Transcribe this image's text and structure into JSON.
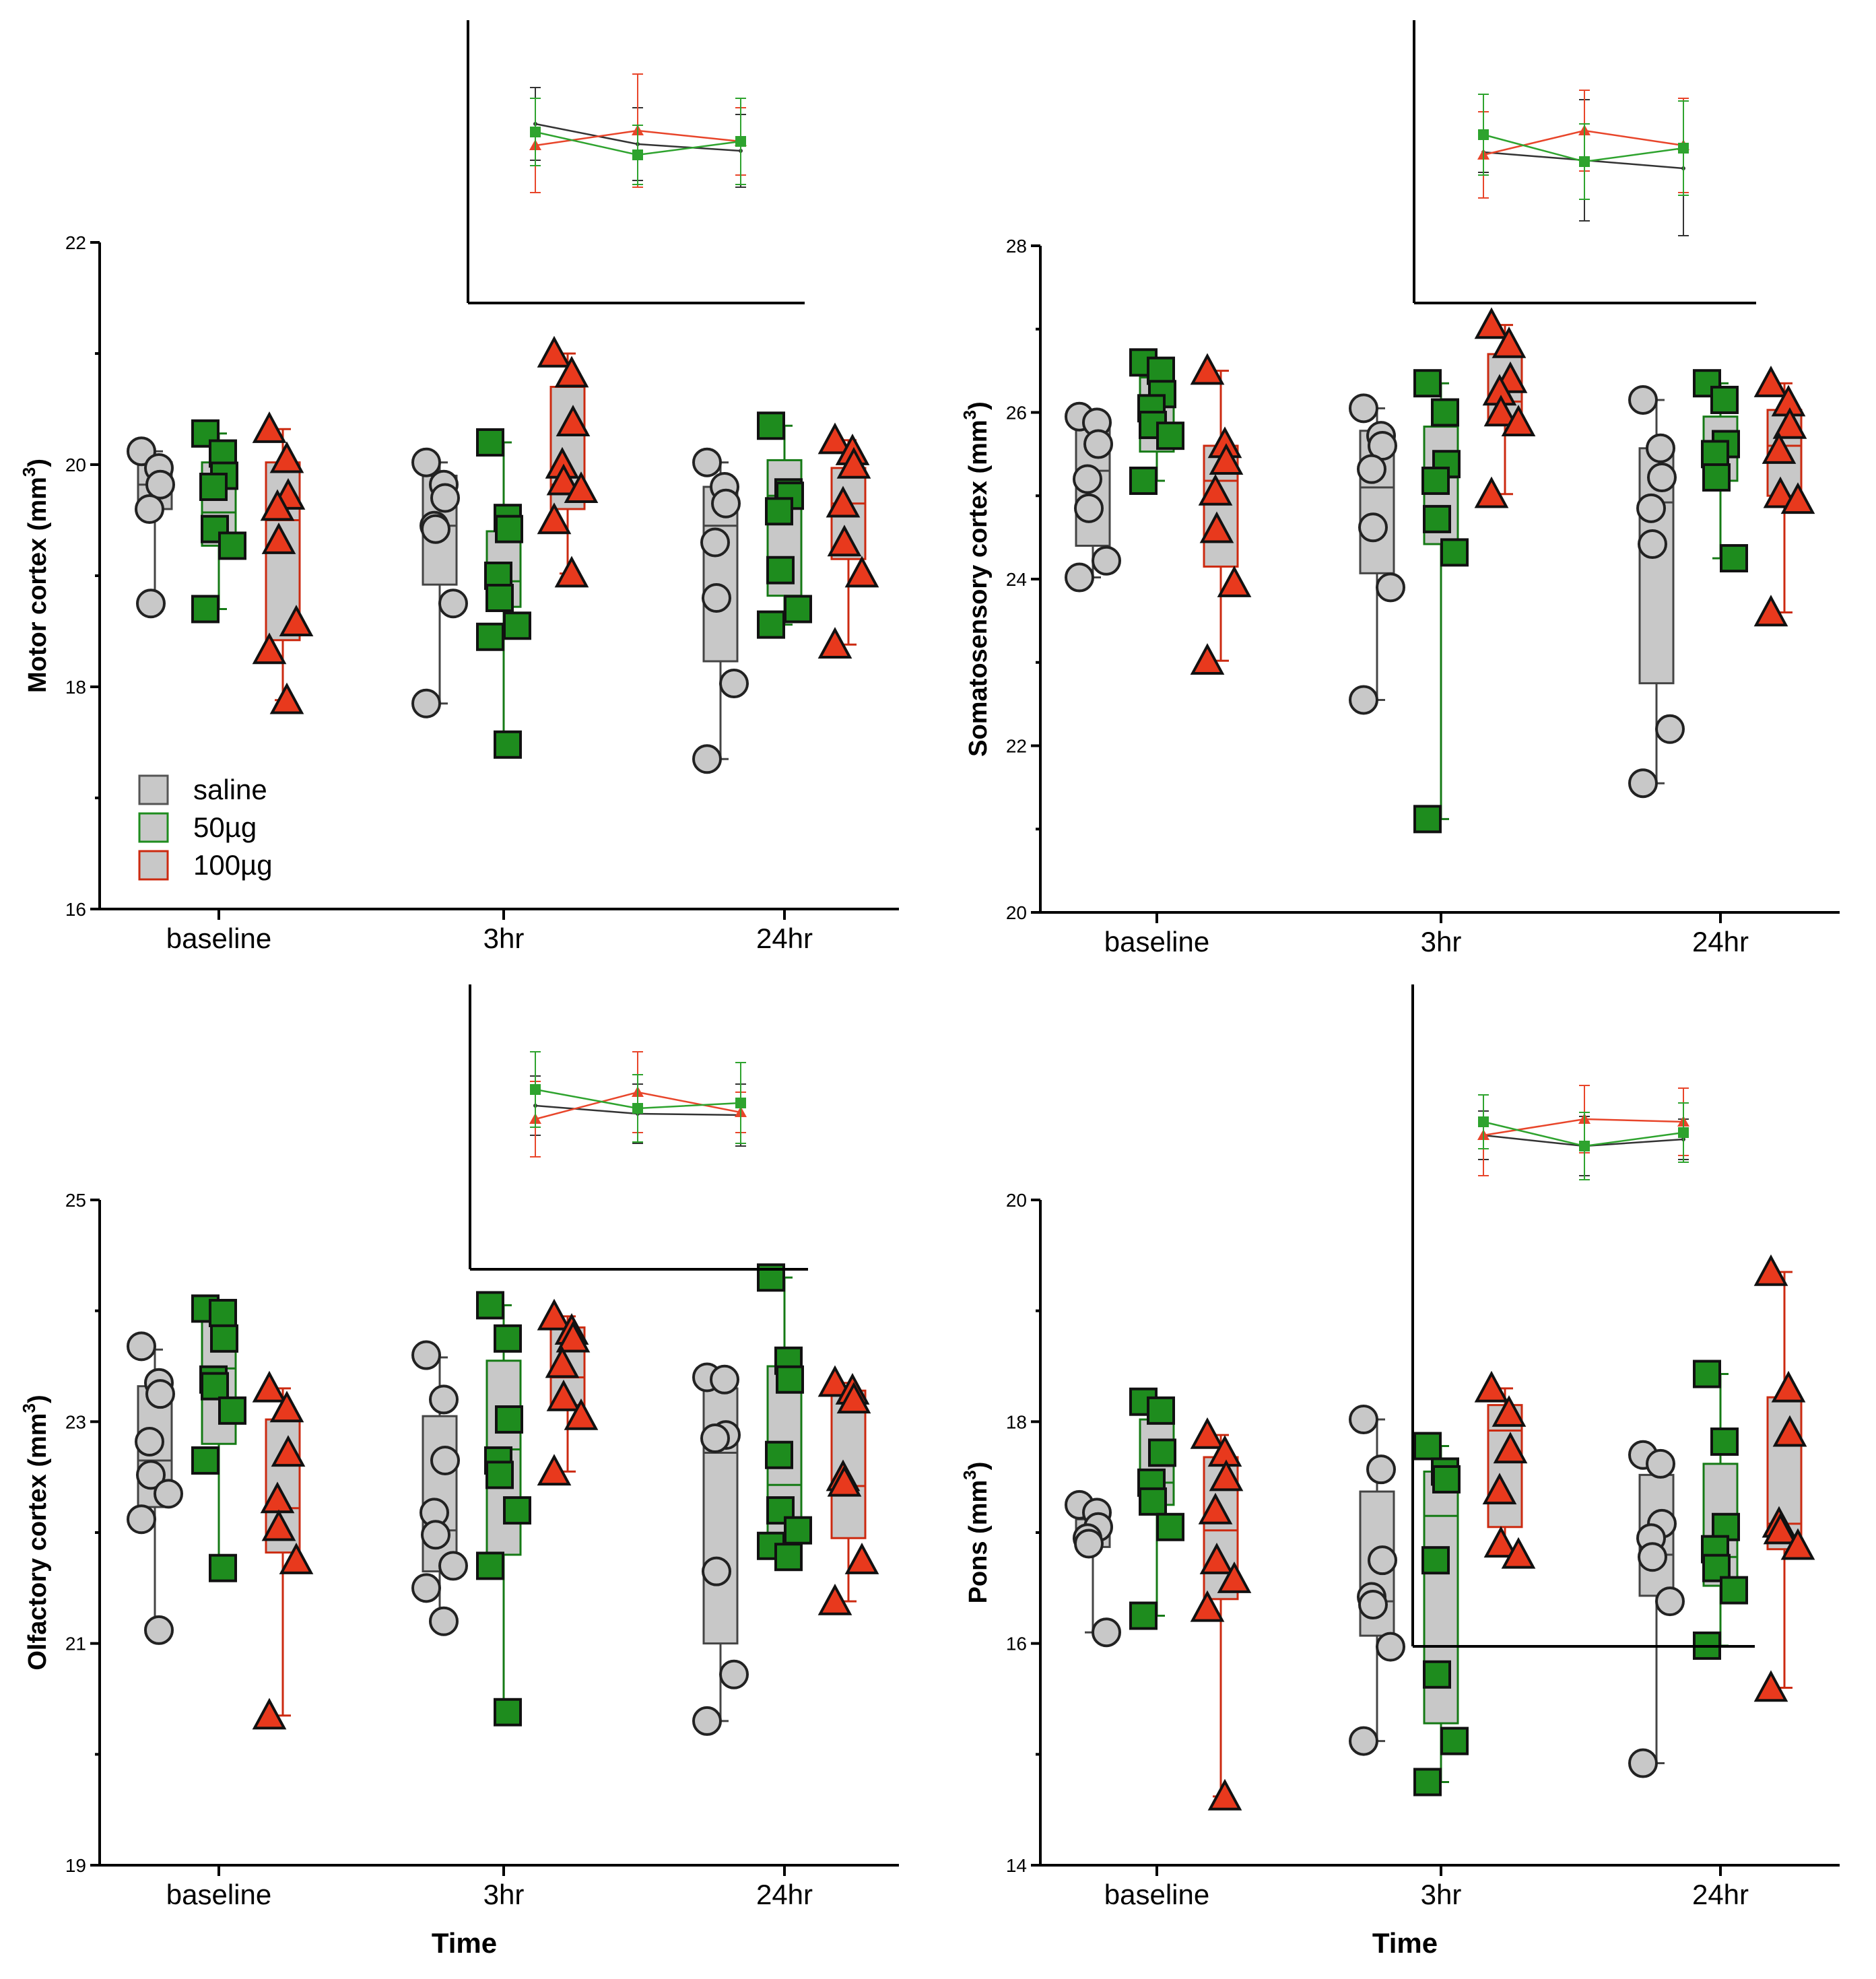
{
  "colors": {
    "saline_fill": "#c8c8c8",
    "saline_edge": "#333333",
    "d50_fill": "#1e8c1e",
    "d50_edge": "#157a15",
    "d100_fill": "#e8391d",
    "d100_edge": "#cc2a10",
    "box_fill": "#c8c8c8",
    "inset_saline": "#333333",
    "inset_50": "#2ea32e",
    "inset_100": "#e8452a"
  },
  "legend": {
    "items": [
      {
        "label": "saline",
        "key": "saline"
      },
      {
        "label": "50µg",
        "key": "d50"
      },
      {
        "label": "100µg",
        "key": "d100"
      }
    ]
  },
  "chart_data": [
    {
      "type": "box",
      "ylabel_main": "Motor cortex (mm",
      "ylabel_sup": "3",
      "ylabel_close": ")",
      "xlabel": "",
      "ylim": [
        16,
        22
      ],
      "yticks": [
        "16",
        "18",
        "20",
        "22"
      ],
      "categories": [
        "baseline",
        "3hr",
        "24hr"
      ],
      "series": [
        {
          "name": "saline",
          "groups": [
            {
              "box": [
                18.75,
                19.6,
                19.82,
                20.02,
                20.12
              ],
              "points": [
                20.12,
                19.97,
                19.82,
                19.6,
                18.75
              ]
            },
            {
              "box": [
                17.85,
                18.92,
                19.45,
                19.9,
                20.02
              ],
              "points": [
                20.02,
                19.82,
                19.7,
                19.45,
                19.42,
                18.75,
                17.85
              ]
            },
            {
              "box": [
                17.35,
                18.23,
                19.45,
                19.8,
                20.02
              ],
              "points": [
                20.02,
                19.8,
                19.65,
                19.3,
                18.8,
                18.03,
                17.35
              ]
            }
          ]
        },
        {
          "name": "50µg",
          "groups": [
            {
              "box": [
                18.7,
                19.27,
                19.57,
                20.02,
                20.28
              ],
              "points": [
                20.28,
                20.1,
                19.9,
                19.8,
                19.42,
                19.27,
                18.7
              ]
            },
            {
              "box": [
                17.48,
                18.72,
                18.95,
                19.4,
                20.2
              ],
              "points": [
                20.2,
                19.52,
                19.42,
                19.0,
                18.8,
                18.55,
                18.45,
                17.48
              ]
            },
            {
              "box": [
                18.56,
                18.82,
                19.72,
                20.04,
                20.35
              ],
              "points": [
                20.35,
                19.75,
                19.72,
                19.58,
                19.05,
                18.7,
                18.56
              ]
            }
          ]
        },
        {
          "name": "100µg",
          "groups": [
            {
              "box": [
                17.88,
                18.42,
                19.5,
                20.02,
                20.32
              ],
              "points": [
                20.32,
                20.05,
                19.72,
                19.62,
                19.32,
                18.58,
                18.33,
                17.88
              ]
            },
            {
              "box": [
                19.02,
                19.6,
                19.82,
                20.7,
                21.0
              ],
              "points": [
                21.0,
                20.82,
                20.38,
                20.0,
                19.85,
                19.78,
                19.5,
                19.02
              ]
            },
            {
              "box": [
                18.38,
                19.15,
                19.65,
                19.97,
                20.22
              ],
              "points": [
                20.22,
                20.12,
                20.0,
                19.65,
                19.3,
                19.02,
                18.38
              ]
            }
          ]
        }
      ],
      "inset": {
        "series": [
          {
            "name": "saline",
            "values": [
              27,
              42,
              47
            ],
            "err": [
              27,
              27,
              27
            ]
          },
          {
            "name": "50µg",
            "values": [
              33,
              50,
              40
            ],
            "err": [
              25,
              22,
              32
            ]
          },
          {
            "name": "100µg",
            "values": [
              43,
              32,
              40
            ],
            "err": [
              35,
              42,
              25
            ]
          }
        ]
      }
    },
    {
      "type": "box",
      "ylabel_main": "Somatosensory cortex (mm",
      "ylabel_sup": "3",
      "ylabel_close": ")",
      "xlabel": "",
      "ylim": [
        20,
        28
      ],
      "yticks": [
        "20",
        "22",
        "24",
        "26",
        "28"
      ],
      "categories": [
        "baseline",
        "3hr",
        "24hr"
      ],
      "series": [
        {
          "name": "saline",
          "groups": [
            {
              "box": [
                24.02,
                24.4,
                25.3,
                25.83,
                25.95
              ],
              "points": [
                25.95,
                25.88,
                25.62,
                25.2,
                24.85,
                24.22,
                24.02
              ]
            },
            {
              "box": [
                22.55,
                24.07,
                25.1,
                25.78,
                26.05
              ],
              "points": [
                26.05,
                25.72,
                25.6,
                25.32,
                24.62,
                23.9,
                22.55
              ]
            },
            {
              "box": [
                21.55,
                22.75,
                24.92,
                25.57,
                26.15
              ],
              "points": [
                26.15,
                25.57,
                25.22,
                24.85,
                24.42,
                22.2,
                21.55
              ]
            }
          ]
        },
        {
          "name": "50µg",
          "groups": [
            {
              "box": [
                25.18,
                25.53,
                25.8,
                26.42,
                26.6
              ],
              "points": [
                26.6,
                26.5,
                26.22,
                26.05,
                25.85,
                25.72,
                25.18
              ]
            },
            {
              "box": [
                21.12,
                24.42,
                25.22,
                25.83,
                26.35
              ],
              "points": [
                26.35,
                26.0,
                25.38,
                25.18,
                24.72,
                24.32,
                21.12
              ]
            },
            {
              "box": [
                24.25,
                25.18,
                25.57,
                25.95,
                26.35
              ],
              "points": [
                26.35,
                26.15,
                25.62,
                25.5,
                25.22,
                24.25
              ]
            }
          ]
        },
        {
          "name": "100µg",
          "groups": [
            {
              "box": [
                23.02,
                24.15,
                25.18,
                25.6,
                26.5
              ],
              "points": [
                26.5,
                25.62,
                25.42,
                25.05,
                24.6,
                23.95,
                23.02
              ]
            },
            {
              "box": [
                25.02,
                25.9,
                26.13,
                26.7,
                27.05
              ],
              "points": [
                27.05,
                26.82,
                26.4,
                26.25,
                26.0,
                25.88,
                25.02
              ]
            },
            {
              "box": [
                23.6,
                25.0,
                25.6,
                26.03,
                26.35
              ],
              "points": [
                26.35,
                26.12,
                25.85,
                25.55,
                25.02,
                24.95,
                23.6
              ]
            }
          ]
        }
      ],
      "inset": {
        "series": [
          {
            "name": "saline",
            "values": [
              48,
              54,
              60
            ],
            "err": [
              15,
              45,
              50
            ]
          },
          {
            "name": "50µg",
            "values": [
              35,
              55,
              45
            ],
            "err": [
              30,
              28,
              35
            ]
          },
          {
            "name": "100µg",
            "values": [
              50,
              32,
              43
            ],
            "err": [
              32,
              30,
              35
            ]
          }
        ]
      }
    },
    {
      "type": "box",
      "ylabel_main": "Olfactory cortex (mm",
      "ylabel_sup": "3",
      "ylabel_close": ")",
      "xlabel": "Time",
      "ylim": [
        19,
        25
      ],
      "yticks": [
        "19",
        "21",
        "23",
        "25"
      ],
      "categories": [
        "baseline",
        "3hr",
        "24hr"
      ],
      "series": [
        {
          "name": "saline",
          "groups": [
            {
              "box": [
                21.12,
                22.23,
                22.65,
                23.32,
                23.65
              ],
              "points": [
                23.68,
                23.35,
                23.25,
                22.82,
                22.52,
                22.35,
                22.12,
                21.12
              ]
            },
            {
              "box": [
                21.2,
                21.65,
                22.02,
                23.05,
                23.58
              ],
              "points": [
                23.6,
                23.2,
                22.65,
                22.18,
                21.98,
                21.7,
                21.5,
                21.2
              ]
            },
            {
              "box": [
                20.3,
                21.0,
                22.72,
                23.3,
                23.4
              ],
              "points": [
                23.4,
                23.38,
                22.88,
                22.85,
                21.65,
                20.72,
                20.3
              ]
            }
          ]
        },
        {
          "name": "50µg",
          "groups": [
            {
              "box": [
                21.68,
                22.8,
                23.48,
                23.98,
                24.02
              ],
              "points": [
                24.02,
                23.98,
                23.75,
                23.38,
                23.32,
                23.1,
                22.65,
                21.68
              ]
            },
            {
              "box": [
                20.38,
                21.8,
                22.75,
                23.55,
                24.05
              ],
              "points": [
                24.05,
                23.75,
                23.02,
                22.65,
                22.52,
                22.2,
                21.7,
                20.38
              ]
            },
            {
              "box": [
                21.78,
                21.95,
                22.43,
                23.5,
                24.3
              ],
              "points": [
                24.3,
                23.55,
                23.38,
                22.7,
                22.2,
                22.02,
                21.88,
                21.78
              ]
            }
          ]
        },
        {
          "name": "100µg",
          "groups": [
            {
              "box": [
                20.35,
                21.82,
                22.22,
                23.02,
                23.3
              ],
              "points": [
                23.3,
                23.12,
                22.72,
                22.3,
                22.05,
                21.75,
                20.35
              ]
            },
            {
              "box": [
                22.55,
                23.15,
                23.4,
                23.85,
                23.95
              ],
              "points": [
                23.95,
                23.82,
                23.75,
                23.52,
                23.22,
                23.05,
                22.55
              ]
            },
            {
              "box": [
                21.38,
                21.95,
                22.42,
                23.28,
                23.35
              ],
              "points": [
                23.35,
                23.28,
                23.2,
                22.5,
                22.45,
                21.75,
                21.38
              ]
            }
          ]
        }
      ],
      "inset": {
        "series": [
          {
            "name": "saline",
            "values": [
              40,
              46,
              47
            ],
            "err": [
              22,
              22,
              23
            ]
          },
          {
            "name": "50µg",
            "values": [
              28,
              42,
              38
            ],
            "err": [
              28,
              25,
              30
            ]
          },
          {
            "name": "100µg",
            "values": [
              50,
              30,
              45
            ],
            "err": [
              28,
              30,
              15
            ]
          }
        ]
      }
    },
    {
      "type": "box",
      "ylabel_main": "Pons (mm",
      "ylabel_sup": "3",
      "ylabel_close": ")",
      "xlabel": "Time",
      "ylim": [
        14,
        20
      ],
      "yticks": [
        "14",
        "16",
        "18",
        "20"
      ],
      "categories": [
        "baseline",
        "3hr",
        "24hr"
      ],
      "series": [
        {
          "name": "saline",
          "groups": [
            {
              "box": [
                16.1,
                16.87,
                16.98,
                17.12,
                17.28
              ],
              "points": [
                17.25,
                17.18,
                17.05,
                16.95,
                16.9,
                16.1
              ]
            },
            {
              "box": [
                15.12,
                16.07,
                16.38,
                17.37,
                18.02
              ],
              "points": [
                18.02,
                17.57,
                16.75,
                16.42,
                16.35,
                15.97,
                15.12
              ]
            },
            {
              "box": [
                14.92,
                16.43,
                16.8,
                17.52,
                17.7
              ],
              "points": [
                17.7,
                17.62,
                17.08,
                16.95,
                16.78,
                16.38,
                14.92
              ]
            }
          ]
        },
        {
          "name": "50µg",
          "groups": [
            {
              "box": [
                16.25,
                17.25,
                17.45,
                18.02,
                18.18
              ],
              "points": [
                18.18,
                18.1,
                17.72,
                17.45,
                17.28,
                17.05,
                16.25
              ]
            },
            {
              "box": [
                14.75,
                15.28,
                17.15,
                17.55,
                17.78
              ],
              "points": [
                17.78,
                17.55,
                17.48,
                16.75,
                15.72,
                15.12,
                14.75
              ]
            },
            {
              "box": [
                15.98,
                16.52,
                16.78,
                17.62,
                18.43
              ],
              "points": [
                18.43,
                17.82,
                17.05,
                16.85,
                16.68,
                16.48,
                15.98
              ]
            }
          ]
        },
        {
          "name": "100µg",
          "groups": [
            {
              "box": [
                14.62,
                16.4,
                17.02,
                17.68,
                17.88
              ],
              "points": [
                17.88,
                17.72,
                17.5,
                17.2,
                16.75,
                16.58,
                16.32,
                14.62
              ]
            },
            {
              "box": [
                16.8,
                17.05,
                17.92,
                18.15,
                18.3
              ],
              "points": [
                18.3,
                18.08,
                17.75,
                17.38,
                16.9,
                16.8
              ]
            },
            {
              "box": [
                15.6,
                16.85,
                17.08,
                18.22,
                19.35
              ],
              "points": [
                19.35,
                18.3,
                17.9,
                17.08,
                17.02,
                16.88,
                15.6
              ]
            }
          ]
        }
      ],
      "inset": {
        "series": [
          {
            "name": "saline",
            "values": [
              52,
              60,
              55
            ],
            "err": [
              18,
              22,
              15
            ]
          },
          {
            "name": "50µg",
            "values": [
              42,
              60,
              50
            ],
            "err": [
              20,
              25,
              22
            ]
          },
          {
            "name": "100µg",
            "values": [
              52,
              40,
              42
            ],
            "err": [
              30,
              25,
              25
            ]
          }
        ]
      }
    }
  ]
}
